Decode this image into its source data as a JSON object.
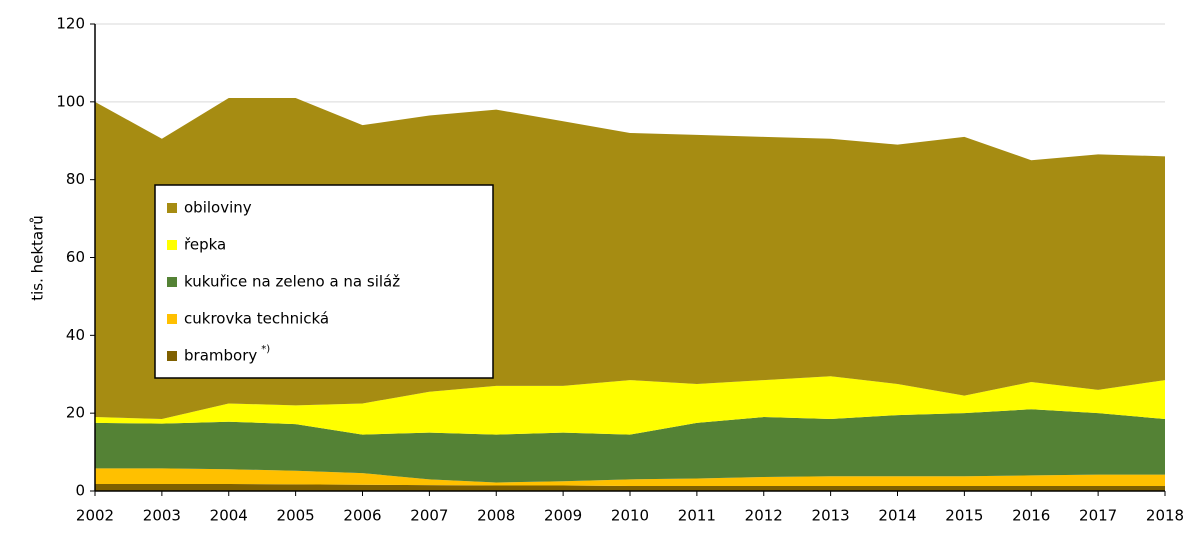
{
  "chart_data": {
    "type": "stacked_area",
    "y_label": "tis. hektarů",
    "x": [
      2002,
      2003,
      2004,
      2005,
      2006,
      2007,
      2008,
      2009,
      2010,
      2011,
      2012,
      2013,
      2014,
      2015,
      2016,
      2017,
      2018
    ],
    "xlim": [
      2002,
      2018
    ],
    "xticks": [
      2002,
      2003,
      2004,
      2005,
      2006,
      2007,
      2008,
      2009,
      2010,
      2011,
      2012,
      2013,
      2014,
      2015,
      2016,
      2017,
      2018
    ],
    "ylim": [
      0,
      120
    ],
    "yticks": [
      0,
      20,
      40,
      60,
      80,
      100,
      120
    ],
    "grid": true,
    "legend": "left",
    "series": [
      {
        "name": "obiloviny",
        "color": "#a68c12",
        "values": [
          81,
          72,
          78.5,
          79,
          71.5,
          71,
          71,
          68,
          63.5,
          64,
          62.5,
          61,
          61.5,
          66.5,
          57,
          60.5,
          57.5
        ]
      },
      {
        "name": "řepka",
        "color": "#ffff00",
        "values": [
          1.5,
          1.2,
          4.7,
          4.8,
          8.0,
          10.5,
          12.5,
          12.0,
          14.0,
          10.0,
          9.5,
          11.0,
          8.0,
          4.5,
          7.0,
          6.0,
          10.0
        ]
      },
      {
        "name": "kukuřice na zeleno a na siláž",
        "color": "#548235",
        "values": [
          11.7,
          11.5,
          12.2,
          12.0,
          9.9,
          12.0,
          12.3,
          12.5,
          11.5,
          14.3,
          15.4,
          14.7,
          15.7,
          16.2,
          17.0,
          15.8,
          14.3
        ]
      },
      {
        "name": "cukrovka technická",
        "color": "#ffc000",
        "values": [
          4.0,
          4.0,
          3.8,
          3.5,
          3.0,
          1.5,
          0.8,
          1.1,
          1.7,
          1.9,
          2.3,
          2.5,
          2.5,
          2.5,
          2.7,
          2.9,
          2.9
        ]
      },
      {
        "name": "brambory",
        "name_note": "*)",
        "color": "#7f6000",
        "values": [
          1.8,
          1.8,
          1.8,
          1.7,
          1.6,
          1.5,
          1.4,
          1.4,
          1.3,
          1.3,
          1.3,
          1.3,
          1.3,
          1.3,
          1.3,
          1.3,
          1.3
        ]
      }
    ]
  }
}
